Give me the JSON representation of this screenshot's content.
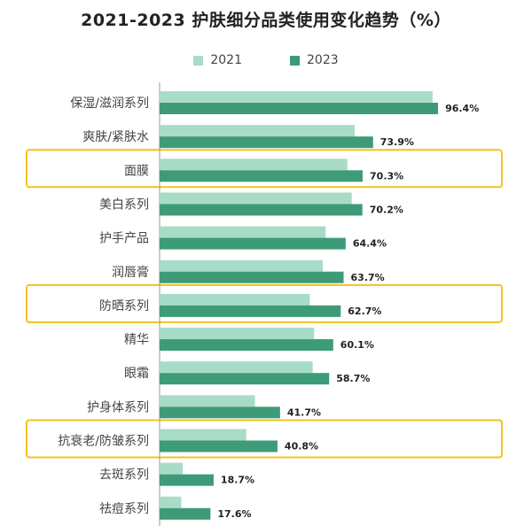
{
  "chart_data": {
    "type": "bar",
    "orientation": "horizontal",
    "title": "2021-2023 护肤细分品类使用变化趋势（%）",
    "categories": [
      "保湿/滋润系列",
      "爽肤/紧肤水",
      "面膜",
      "美白系列",
      "护手产品",
      "润唇膏",
      "防晒系列",
      "精华",
      "眼霜",
      "护身体系列",
      "抗衰老/防皱系列",
      "去斑系列",
      "祛痘系列"
    ],
    "series": [
      {
        "name": "2021",
        "color": "#a8dcc8",
        "values": [
          94.5,
          67.5,
          65.0,
          66.5,
          57.5,
          56.5,
          52.0,
          53.5,
          53.0,
          33.0,
          30.0,
          8.0,
          7.5
        ]
      },
      {
        "name": "2023",
        "color": "#3e9b78",
        "values": [
          96.4,
          73.9,
          70.3,
          70.2,
          64.4,
          63.7,
          62.7,
          60.1,
          58.7,
          41.7,
          40.8,
          18.7,
          17.6
        ]
      }
    ],
    "data_labels": [
      "96.4%",
      "73.9%",
      "70.3%",
      "70.2%",
      "64.4%",
      "63.7%",
      "62.7%",
      "60.1%",
      "58.7%",
      "41.7%",
      "40.8%",
      "18.7%",
      "17.6%"
    ],
    "highlighted_categories": [
      "面膜",
      "防晒系列",
      "抗衰老/防皱系列"
    ],
    "highlight_color": "#f0c419",
    "xlim": [
      0,
      100
    ],
    "grid": false,
    "legend_position": "top"
  }
}
